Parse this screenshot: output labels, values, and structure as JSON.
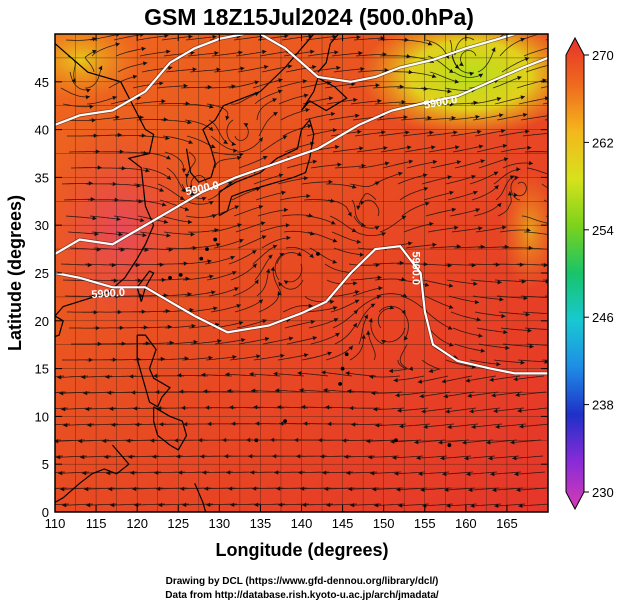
{
  "title": "GSM 18Z15Jul2024 (500.0hPa)",
  "xlabel": "Longitude (degrees)",
  "ylabel": "Latitude  (degrees)",
  "x_ticks": [
    "110",
    "115",
    "120",
    "125",
    "130",
    "135",
    "140",
    "145",
    "150",
    "155",
    "160",
    "165"
  ],
  "y_ticks": [
    "0",
    "5",
    "10",
    "15",
    "20",
    "25",
    "30",
    "35",
    "40",
    "45"
  ],
  "xlim": [
    110,
    170
  ],
  "ylim": [
    0,
    50
  ],
  "colorbar": {
    "range": [
      230,
      270
    ],
    "ticks": [
      "230",
      "238",
      "246",
      "254",
      "262",
      "270"
    ],
    "colors": [
      "#d63cb2",
      "#8a2bd8",
      "#1f30c8",
      "#1e8ce6",
      "#18c8d2",
      "#18c46a",
      "#7ad21c",
      "#d6e21c",
      "#f4b81c",
      "#ef6a1e",
      "#e6322a"
    ]
  },
  "contours": [
    {
      "label": "5900.0",
      "lon": 128,
      "lat": 33.5
    },
    {
      "label": "5900.0",
      "lon": 116.5,
      "lat": 22.5
    },
    {
      "label": "5900.0",
      "lon": 153.5,
      "lat": 25.5
    },
    {
      "label": "5900.0",
      "lon": 157,
      "lat": 42.5
    }
  ],
  "credits": {
    "line1": "Drawing by DCL (https://www.gfd-dennou.org/library/dcl/)",
    "line2": "Data from http://database.rish.kyoto-u.ac.jp/arch/jmadata/"
  }
}
